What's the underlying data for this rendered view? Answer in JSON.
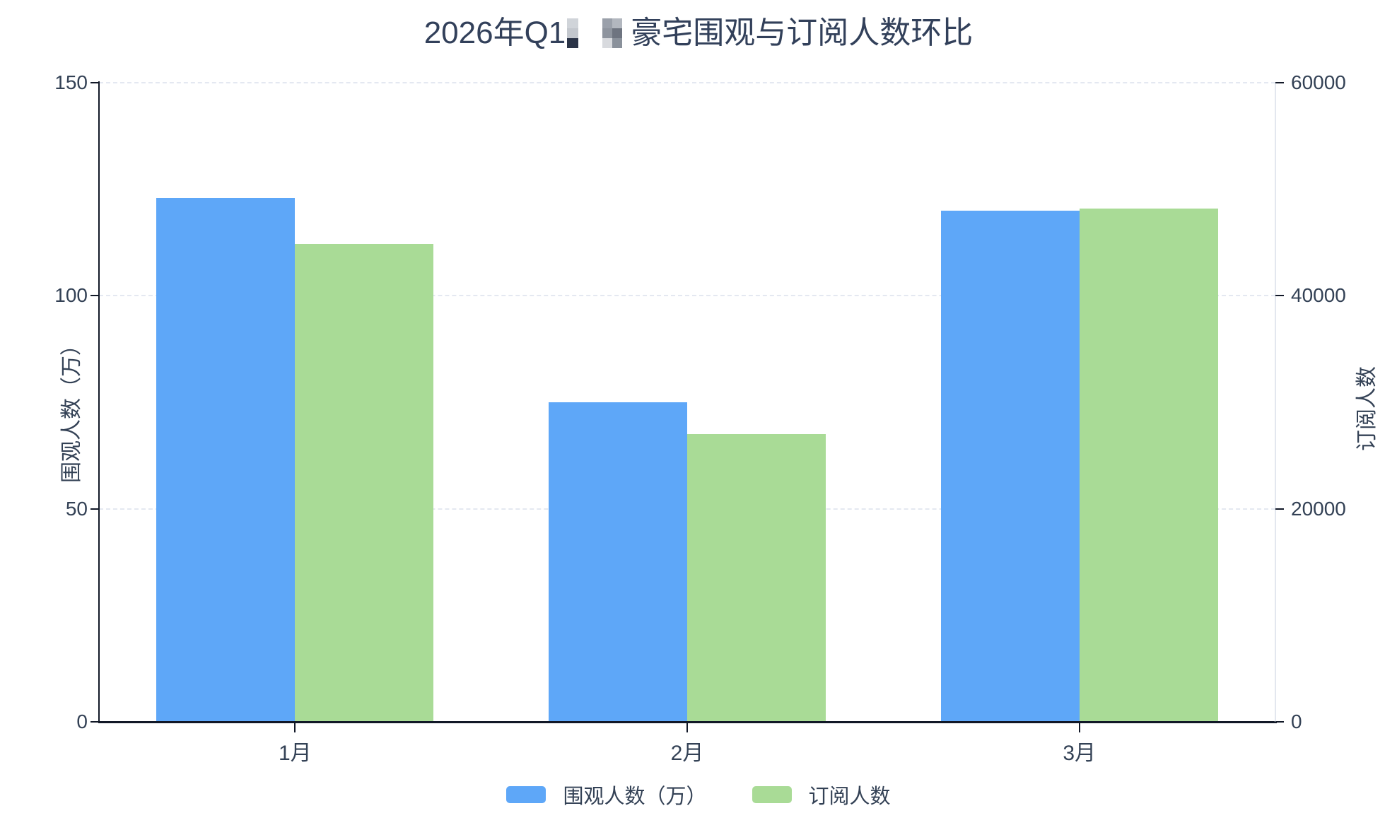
{
  "title": {
    "prefix": "2026年Q1",
    "suffix": "豪宅围观与订阅人数环比",
    "full_visible_text": "2026年Q1██豪宅围观与订阅人数环比",
    "redaction_blocks": [
      {
        "name": "mosaic-block-1",
        "cells": [
          "#d0d4d9",
          "#c3c7cd",
          "#2b3447"
        ]
      },
      {
        "name": "mosaic-block-2",
        "cells": [
          "#9aa0aa",
          "#b2b7bf",
          "#8e949e",
          "#6e7480",
          "#d8dade",
          "#8a919b"
        ]
      }
    ]
  },
  "chart_data": {
    "type": "bar",
    "title": "2026年Q1██豪宅围观与订阅人数环比",
    "categories": [
      "1月",
      "2月",
      "3月"
    ],
    "series": [
      {
        "name": "围观人数（万）",
        "yaxis": "left",
        "color": "#5ea7f8",
        "values": [
          123,
          75,
          120
        ]
      },
      {
        "name": "订阅人数",
        "yaxis": "right",
        "color": "#a9db96",
        "values": [
          44900,
          27000,
          48200
        ]
      }
    ],
    "left_axis": {
      "label": "围观人数（万）",
      "min": 0,
      "max": 150,
      "ticks": [
        0,
        50,
        100,
        150
      ]
    },
    "right_axis": {
      "label": "订阅人数",
      "min": 0,
      "max": 60000,
      "ticks": [
        0,
        20000,
        40000,
        60000
      ]
    },
    "x_axis": {
      "labels": [
        "1月",
        "2月",
        "3月"
      ]
    },
    "legend": {
      "position": "bottom",
      "items": [
        "围观人数（万）",
        "订阅人数"
      ]
    },
    "grid": {
      "horizontal_gridlines": true,
      "style": "dashed"
    }
  },
  "colors": {
    "background": "#ffffff",
    "text": "#334155",
    "title_text": "#32405a",
    "axis_line_dark": "#111827",
    "axis_line_light": "#e3e7ef",
    "gridline": "#e4e8f1",
    "series_blue": "#5ea7f8",
    "series_green": "#a9db96"
  }
}
